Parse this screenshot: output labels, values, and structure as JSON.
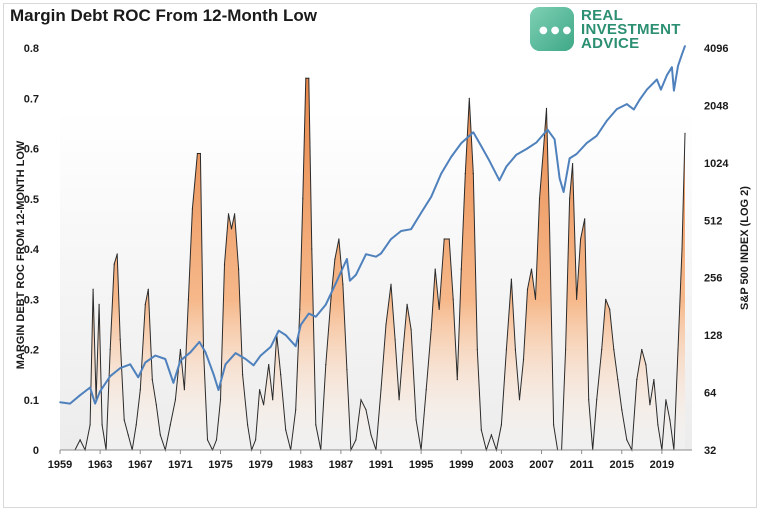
{
  "chart_data": {
    "type": "area",
    "title": "Margin Debt ROC From 12-Month Low",
    "ylabel": "MARGIN DEBT ROC FROM 12-MONTH LOW",
    "y2label": "S&P 500 INDEX (LOG 2)",
    "xlim": [
      1959,
      2022
    ],
    "ylim": [
      0,
      0.8
    ],
    "y2lim_log2": [
      32,
      4096
    ],
    "x_ticks": [
      "1959",
      "1963",
      "1967",
      "1971",
      "1975",
      "1979",
      "1983",
      "1987",
      "1991",
      "1995",
      "1999",
      "2003",
      "2007",
      "2011",
      "2015",
      "2019"
    ],
    "y_ticks": [
      "0",
      "0.1",
      "0.2",
      "0.3",
      "0.4",
      "0.5",
      "0.6",
      "0.7",
      "0.8"
    ],
    "y2_ticks": [
      "32",
      "64",
      "128",
      "256",
      "512",
      "1024",
      "2048",
      "4096"
    ],
    "grid": false,
    "legend": "none",
    "colors": {
      "roc_fill": "#f4a460",
      "roc_line": "#2b2b2b",
      "sp500_line": "#4f81bd"
    },
    "series": [
      {
        "name": "",
        "role": "margin_debt_roc",
        "points": [
          [
            1960.5,
            0.0
          ],
          [
            1961.0,
            0.02
          ],
          [
            1961.5,
            0.0
          ],
          [
            1962.0,
            0.05
          ],
          [
            1962.3,
            0.32
          ],
          [
            1962.6,
            0.1
          ],
          [
            1962.9,
            0.29
          ],
          [
            1963.2,
            0.05
          ],
          [
            1963.6,
            0.0
          ],
          [
            1964.0,
            0.2
          ],
          [
            1964.4,
            0.37
          ],
          [
            1964.7,
            0.39
          ],
          [
            1965.0,
            0.22
          ],
          [
            1965.4,
            0.06
          ],
          [
            1965.8,
            0.03
          ],
          [
            1966.2,
            0.0
          ],
          [
            1966.6,
            0.05
          ],
          [
            1967.0,
            0.12
          ],
          [
            1967.5,
            0.29
          ],
          [
            1967.8,
            0.32
          ],
          [
            1968.2,
            0.14
          ],
          [
            1968.6,
            0.09
          ],
          [
            1969.0,
            0.03
          ],
          [
            1969.5,
            0.0
          ],
          [
            1970.0,
            0.05
          ],
          [
            1970.5,
            0.1
          ],
          [
            1971.0,
            0.2
          ],
          [
            1971.4,
            0.12
          ],
          [
            1971.8,
            0.3
          ],
          [
            1972.2,
            0.48
          ],
          [
            1972.7,
            0.59
          ],
          [
            1973.0,
            0.59
          ],
          [
            1973.3,
            0.2
          ],
          [
            1973.7,
            0.02
          ],
          [
            1974.2,
            0.0
          ],
          [
            1974.6,
            0.02
          ],
          [
            1975.0,
            0.1
          ],
          [
            1975.4,
            0.37
          ],
          [
            1975.8,
            0.47
          ],
          [
            1976.1,
            0.44
          ],
          [
            1976.4,
            0.47
          ],
          [
            1976.8,
            0.36
          ],
          [
            1977.2,
            0.15
          ],
          [
            1977.7,
            0.05
          ],
          [
            1978.1,
            0.0
          ],
          [
            1978.5,
            0.02
          ],
          [
            1978.9,
            0.12
          ],
          [
            1979.3,
            0.09
          ],
          [
            1979.8,
            0.17
          ],
          [
            1980.2,
            0.1
          ],
          [
            1980.6,
            0.23
          ],
          [
            1981.0,
            0.15
          ],
          [
            1981.5,
            0.04
          ],
          [
            1982.0,
            0.0
          ],
          [
            1982.5,
            0.08
          ],
          [
            1982.9,
            0.28
          ],
          [
            1983.2,
            0.5
          ],
          [
            1983.5,
            0.74
          ],
          [
            1983.8,
            0.74
          ],
          [
            1984.1,
            0.4
          ],
          [
            1984.5,
            0.05
          ],
          [
            1985.0,
            0.0
          ],
          [
            1985.5,
            0.17
          ],
          [
            1986.0,
            0.3
          ],
          [
            1986.4,
            0.38
          ],
          [
            1986.8,
            0.42
          ],
          [
            1987.2,
            0.33
          ],
          [
            1987.6,
            0.16
          ],
          [
            1988.0,
            0.0
          ],
          [
            1988.5,
            0.02
          ],
          [
            1989.0,
            0.1
          ],
          [
            1989.5,
            0.08
          ],
          [
            1990.0,
            0.03
          ],
          [
            1990.5,
            0.0
          ],
          [
            1991.0,
            0.12
          ],
          [
            1991.5,
            0.25
          ],
          [
            1992.0,
            0.33
          ],
          [
            1992.4,
            0.22
          ],
          [
            1992.8,
            0.1
          ],
          [
            1993.2,
            0.2
          ],
          [
            1993.6,
            0.29
          ],
          [
            1994.0,
            0.24
          ],
          [
            1994.5,
            0.06
          ],
          [
            1995.0,
            0.0
          ],
          [
            1995.5,
            0.12
          ],
          [
            1996.0,
            0.24
          ],
          [
            1996.4,
            0.36
          ],
          [
            1996.8,
            0.28
          ],
          [
            1997.3,
            0.42
          ],
          [
            1997.8,
            0.42
          ],
          [
            1998.2,
            0.3
          ],
          [
            1998.6,
            0.14
          ],
          [
            1999.0,
            0.36
          ],
          [
            1999.4,
            0.55
          ],
          [
            1999.8,
            0.7
          ],
          [
            2000.2,
            0.55
          ],
          [
            2000.6,
            0.2
          ],
          [
            2001.0,
            0.04
          ],
          [
            2001.5,
            0.0
          ],
          [
            2002.0,
            0.03
          ],
          [
            2002.5,
            0.0
          ],
          [
            2003.0,
            0.05
          ],
          [
            2003.5,
            0.2
          ],
          [
            2004.0,
            0.34
          ],
          [
            2004.4,
            0.2
          ],
          [
            2004.8,
            0.1
          ],
          [
            2005.2,
            0.18
          ],
          [
            2005.6,
            0.32
          ],
          [
            2006.0,
            0.36
          ],
          [
            2006.4,
            0.3
          ],
          [
            2006.8,
            0.5
          ],
          [
            2007.2,
            0.6
          ],
          [
            2007.5,
            0.68
          ],
          [
            2007.8,
            0.45
          ],
          [
            2008.2,
            0.05
          ],
          [
            2008.6,
            0.0
          ],
          [
            2009.0,
            0.0
          ],
          [
            2009.4,
            0.2
          ],
          [
            2009.8,
            0.5
          ],
          [
            2010.1,
            0.57
          ],
          [
            2010.5,
            0.3
          ],
          [
            2010.9,
            0.42
          ],
          [
            2011.3,
            0.46
          ],
          [
            2011.7,
            0.1
          ],
          [
            2012.1,
            0.0
          ],
          [
            2012.5,
            0.1
          ],
          [
            2013.0,
            0.2
          ],
          [
            2013.4,
            0.3
          ],
          [
            2013.8,
            0.28
          ],
          [
            2014.2,
            0.2
          ],
          [
            2014.6,
            0.14
          ],
          [
            2015.0,
            0.08
          ],
          [
            2015.5,
            0.02
          ],
          [
            2016.0,
            0.0
          ],
          [
            2016.5,
            0.14
          ],
          [
            2017.0,
            0.2
          ],
          [
            2017.4,
            0.17
          ],
          [
            2017.8,
            0.09
          ],
          [
            2018.2,
            0.14
          ],
          [
            2018.6,
            0.05
          ],
          [
            2019.0,
            0.0
          ],
          [
            2019.4,
            0.1
          ],
          [
            2019.8,
            0.06
          ],
          [
            2020.2,
            0.0
          ],
          [
            2020.6,
            0.2
          ],
          [
            2021.0,
            0.4
          ],
          [
            2021.3,
            0.63
          ]
        ]
      },
      {
        "name": "",
        "role": "sp500_index",
        "points": [
          [
            1959.0,
            57
          ],
          [
            1960.0,
            56
          ],
          [
            1961.0,
            62
          ],
          [
            1962.0,
            68
          ],
          [
            1962.5,
            56
          ],
          [
            1963.0,
            65
          ],
          [
            1964.0,
            78
          ],
          [
            1965.0,
            86
          ],
          [
            1966.0,
            90
          ],
          [
            1966.8,
            77
          ],
          [
            1967.5,
            92
          ],
          [
            1968.5,
            100
          ],
          [
            1969.5,
            96
          ],
          [
            1970.3,
            72
          ],
          [
            1971.0,
            94
          ],
          [
            1972.0,
            104
          ],
          [
            1972.9,
            118
          ],
          [
            1973.5,
            104
          ],
          [
            1974.3,
            80
          ],
          [
            1974.8,
            66
          ],
          [
            1975.5,
            90
          ],
          [
            1976.5,
            103
          ],
          [
            1977.5,
            96
          ],
          [
            1978.3,
            89
          ],
          [
            1979.0,
            100
          ],
          [
            1980.0,
            111
          ],
          [
            1980.8,
            135
          ],
          [
            1981.5,
            128
          ],
          [
            1982.5,
            112
          ],
          [
            1983.0,
            145
          ],
          [
            1983.8,
            166
          ],
          [
            1984.5,
            160
          ],
          [
            1985.5,
            185
          ],
          [
            1986.5,
            240
          ],
          [
            1987.6,
            321
          ],
          [
            1987.9,
            247
          ],
          [
            1988.5,
            265
          ],
          [
            1989.5,
            340
          ],
          [
            1990.5,
            330
          ],
          [
            1991.0,
            343
          ],
          [
            1992.0,
            408
          ],
          [
            1993.0,
            450
          ],
          [
            1994.0,
            460
          ],
          [
            1995.0,
            560
          ],
          [
            1996.0,
            680
          ],
          [
            1997.0,
            900
          ],
          [
            1998.0,
            1100
          ],
          [
            1999.0,
            1300
          ],
          [
            2000.2,
            1480
          ],
          [
            2001.0,
            1250
          ],
          [
            2001.8,
            1050
          ],
          [
            2002.8,
            830
          ],
          [
            2003.5,
            980
          ],
          [
            2004.5,
            1130
          ],
          [
            2005.5,
            1210
          ],
          [
            2006.5,
            1310
          ],
          [
            2007.6,
            1530
          ],
          [
            2008.3,
            1360
          ],
          [
            2008.8,
            850
          ],
          [
            2009.2,
            720
          ],
          [
            2009.8,
            1080
          ],
          [
            2010.5,
            1140
          ],
          [
            2011.5,
            1300
          ],
          [
            2012.5,
            1420
          ],
          [
            2013.5,
            1700
          ],
          [
            2014.5,
            1960
          ],
          [
            2015.5,
            2080
          ],
          [
            2016.2,
            1950
          ],
          [
            2016.8,
            2200
          ],
          [
            2017.5,
            2480
          ],
          [
            2018.5,
            2800
          ],
          [
            2018.9,
            2480
          ],
          [
            2019.5,
            2950
          ],
          [
            2020.0,
            3250
          ],
          [
            2020.2,
            2450
          ],
          [
            2020.6,
            3300
          ],
          [
            2021.0,
            3800
          ],
          [
            2021.3,
            4200
          ]
        ]
      }
    ]
  }
}
